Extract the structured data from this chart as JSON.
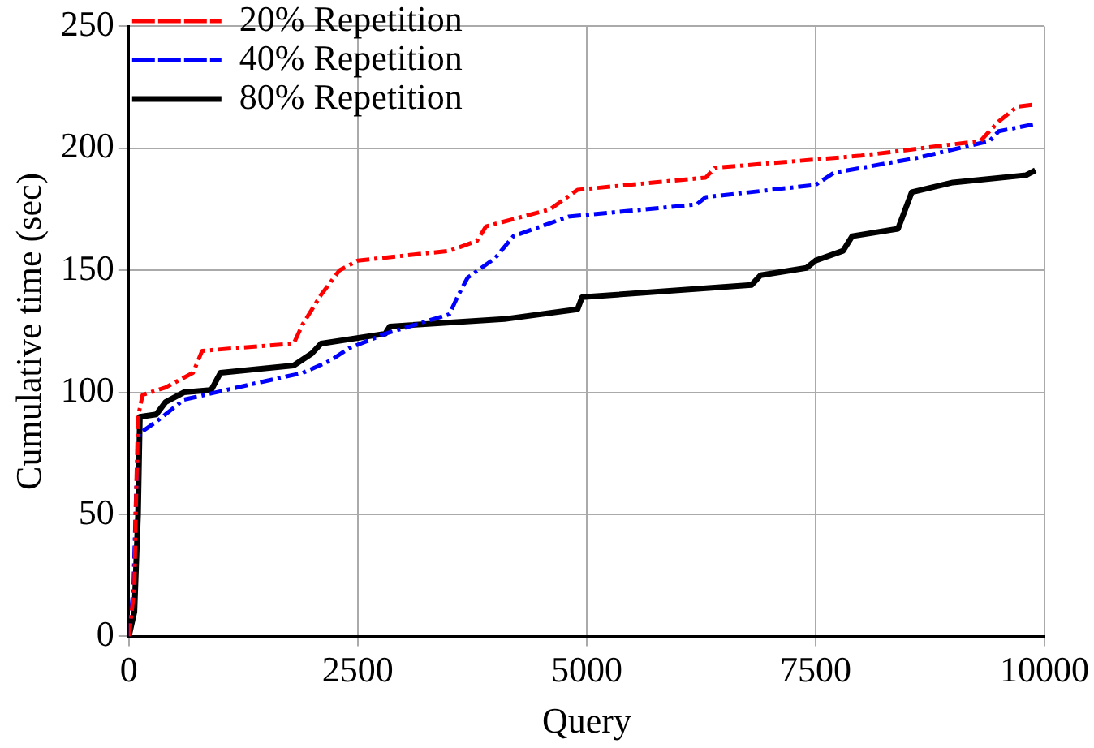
{
  "chart_data": {
    "type": "line",
    "xlabel": "Query",
    "ylabel": "Cumulative time (sec)",
    "xlim": [
      0,
      10000
    ],
    "xticks": [
      0,
      2500,
      5000,
      7500,
      10000
    ],
    "ylim": [
      0,
      250
    ],
    "yticks": [
      0,
      50,
      100,
      150,
      200,
      250
    ],
    "grid": true,
    "legend": "top left",
    "marker": "none",
    "series": [
      {
        "name": "20% Repetition",
        "color": "#ff0000",
        "line_style": "dashed",
        "x": [
          0,
          60,
          80,
          100,
          150,
          400,
          700,
          800,
          1800,
          1900,
          2000,
          2100,
          2300,
          2500,
          3500,
          3800,
          3900,
          4600,
          4900,
          6300,
          6400,
          8000,
          9300,
          9500,
          9700,
          9900
        ],
        "values": [
          0,
          20,
          60,
          90,
          99,
          102,
          108,
          117,
          120,
          128,
          134,
          140,
          150,
          154,
          158,
          162,
          168,
          175,
          183,
          188,
          192,
          197,
          203,
          211,
          217,
          218
        ]
      },
      {
        "name": "40% Repetition",
        "color": "#0000ff",
        "line_style": "dashed",
        "x": [
          0,
          50,
          80,
          110,
          300,
          600,
          1300,
          1900,
          2200,
          2400,
          2800,
          3500,
          3600,
          3700,
          4000,
          4200,
          4800,
          6200,
          6300,
          7500,
          7700,
          8600,
          9400,
          9500,
          9900
        ],
        "values": [
          0,
          20,
          60,
          83,
          88,
          97,
          103,
          108,
          113,
          118,
          124,
          132,
          140,
          147,
          155,
          164,
          172,
          177,
          180,
          185,
          190,
          196,
          203,
          207,
          210
        ]
      },
      {
        "name": "80% Repetition",
        "color": "#000000",
        "line_style": "solid",
        "x": [
          0,
          60,
          100,
          120,
          300,
          400,
          600,
          900,
          1000,
          1800,
          2000,
          2100,
          2800,
          2850,
          4100,
          4900,
          4950,
          6800,
          6900,
          7400,
          7500,
          7800,
          7900,
          8400,
          8500,
          8550,
          9000,
          9800,
          9900
        ],
        "values": [
          0,
          10,
          50,
          90,
          91,
          96,
          100,
          101,
          108,
          111,
          116,
          120,
          124,
          127,
          130,
          134,
          139,
          144,
          148,
          151,
          154,
          158,
          164,
          167,
          177,
          182,
          186,
          189,
          191
        ]
      }
    ]
  }
}
